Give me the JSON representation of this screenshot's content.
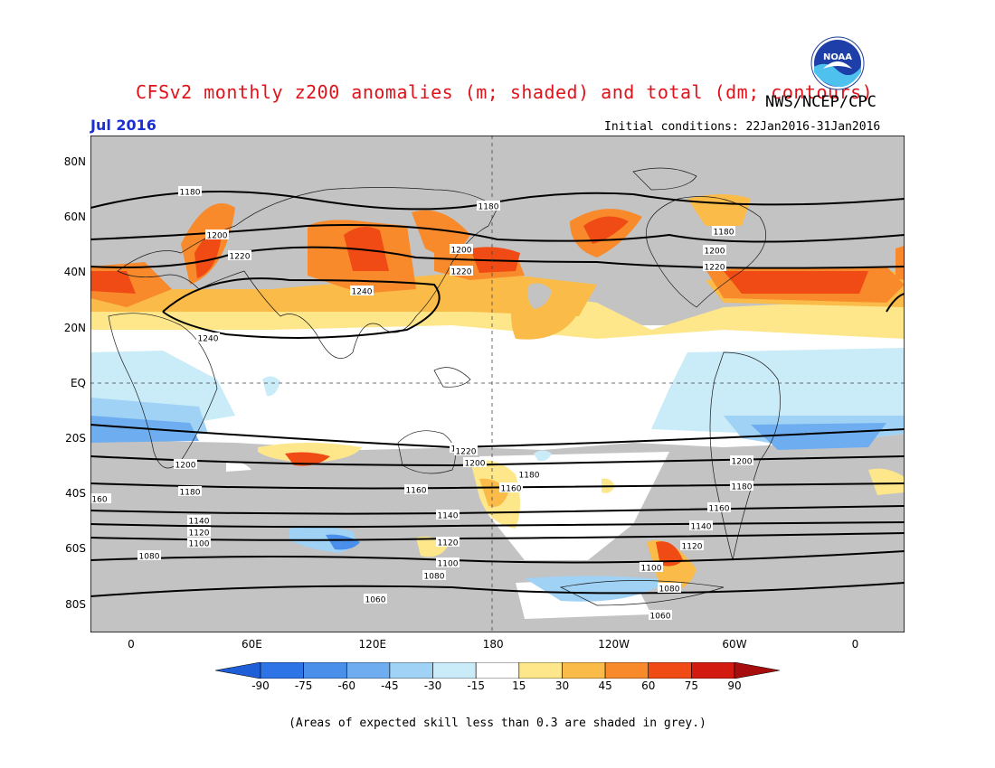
{
  "header": {
    "title": "CFSv2 monthly z200 anomalies (m; shaded) and total (dm; contours)",
    "agency": "NWS/NCEP/CPC",
    "logo_text": "NOAA",
    "month": "Jul 2016",
    "initial_conditions": "Initial conditions: 22Jan2016-31Jan2016"
  },
  "map": {
    "projection": "cylindrical equidistant",
    "lon_range": [
      -20,
      340
    ],
    "lat_range": [
      -90,
      90
    ],
    "grid": "dashed",
    "lat_labels": [
      "80N",
      "60N",
      "40N",
      "20N",
      "EQ",
      "20S",
      "40S",
      "60S",
      "80S"
    ],
    "lon_labels": [
      "0",
      "60E",
      "120E",
      "180",
      "120W",
      "60W",
      "0"
    ],
    "contour_labels": [
      "1180",
      "1180",
      "1180",
      "1200",
      "1200",
      "1200",
      "1220",
      "1220",
      "1220",
      "1240",
      "1240",
      "1220",
      "1200",
      "1180",
      "1160",
      "1140",
      "1120",
      "1100",
      "1080",
      "1060",
      "1200",
      "1180",
      "1160",
      "1140",
      "1120",
      "1100",
      "1080",
      "1060",
      "1220",
      "1200",
      "1180",
      "1160",
      "1140",
      "1120",
      "1100",
      "1080",
      "160"
    ],
    "skill_mask_color": "#c3c3c3"
  },
  "colorbar": {
    "labels": [
      "-90",
      "-75",
      "-60",
      "-45",
      "-30",
      "-15",
      "15",
      "30",
      "45",
      "60",
      "75",
      "90"
    ],
    "colors": [
      "#1e5fd8",
      "#2d74e6",
      "#4a8fea",
      "#6eaef0",
      "#9fd2f5",
      "#c9ecf8",
      "#ffffff",
      "#fde78a",
      "#fbbb48",
      "#f88a2c",
      "#f04a15",
      "#d21a10",
      "#a80d0d"
    ]
  },
  "footnote": "(Areas of expected skill less than 0.3 are shaded in grey.)"
}
